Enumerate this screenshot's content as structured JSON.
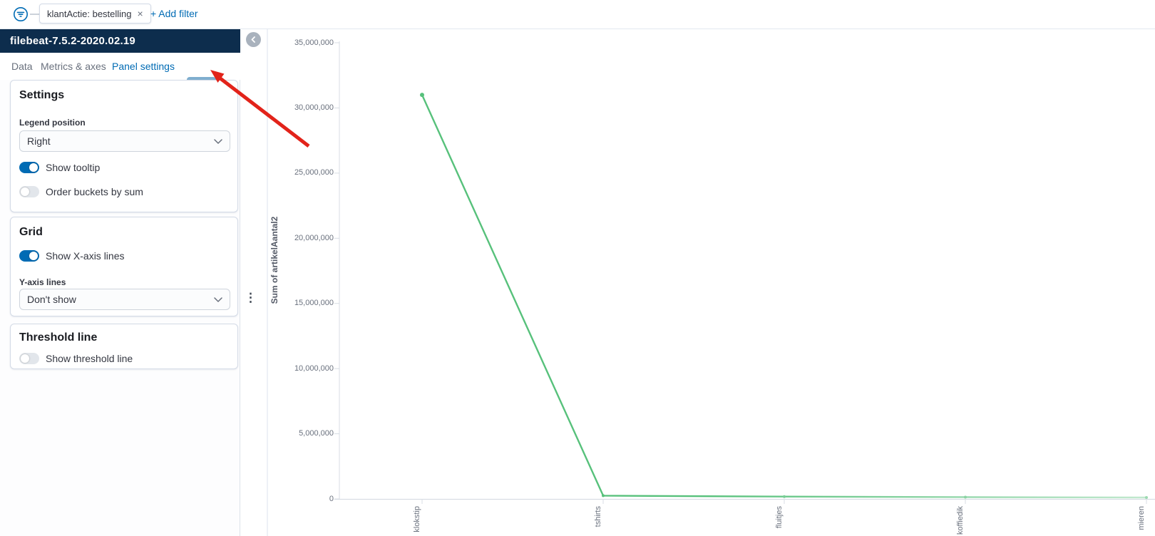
{
  "filter_bar": {
    "pill_label": "klantActie: bestelling",
    "pill_remove": "×",
    "add_filter_label": "+ Add filter"
  },
  "sidebar": {
    "index_pattern": "filebeat-7.5.2-2020.02.19",
    "tabs": [
      {
        "label": "Data"
      },
      {
        "label": "Metrics & axes"
      },
      {
        "label": "Panel settings"
      }
    ],
    "close_label": "×",
    "settings_card": {
      "title": "Settings",
      "legend_position_label": "Legend position",
      "legend_position_value": "Right",
      "show_tooltip_label": "Show tooltip",
      "show_tooltip_on": true,
      "order_buckets_label": "Order buckets by sum",
      "order_buckets_on": false
    },
    "grid_card": {
      "title": "Grid",
      "show_x_axis_label": "Show X-axis lines",
      "show_x_axis_on": true,
      "y_axis_lines_label": "Y-axis lines",
      "y_axis_lines_value": "Don't show"
    },
    "threshold_card": {
      "title": "Threshold line",
      "show_threshold_label": "Show threshold line",
      "show_threshold_on": false
    }
  },
  "chart_data": {
    "type": "line",
    "categories": [
      "klokstip",
      "tshirts",
      "fluitjes",
      "koffiedik",
      "mieren"
    ],
    "values": [
      31000000,
      250000,
      180000,
      140000,
      110000
    ],
    "title": "",
    "xlabel": "",
    "ylabel": "Sum of artikelAantal2",
    "ylim": [
      0,
      35000000
    ],
    "ytick_step": 5000000,
    "ytick_labels": [
      "0",
      "5,000,000",
      "10,000,000",
      "15,000,000",
      "20,000,000",
      "25,000,000",
      "30,000,000",
      "35,000,000"
    ],
    "grid": "x-axis baseline only, y-gridlines hidden",
    "legend_position": "right (legend not rendered)",
    "line_color": "#57c17b"
  },
  "colors": {
    "accent_blue": "#006BB4",
    "header_navy": "#0D2D4D",
    "play_button_bg": "#7FAECF",
    "line_green": "#57c17b",
    "annotation_red": "#e2231a",
    "axis_gray": "#d8dde4",
    "muted_text": "#69707d"
  }
}
